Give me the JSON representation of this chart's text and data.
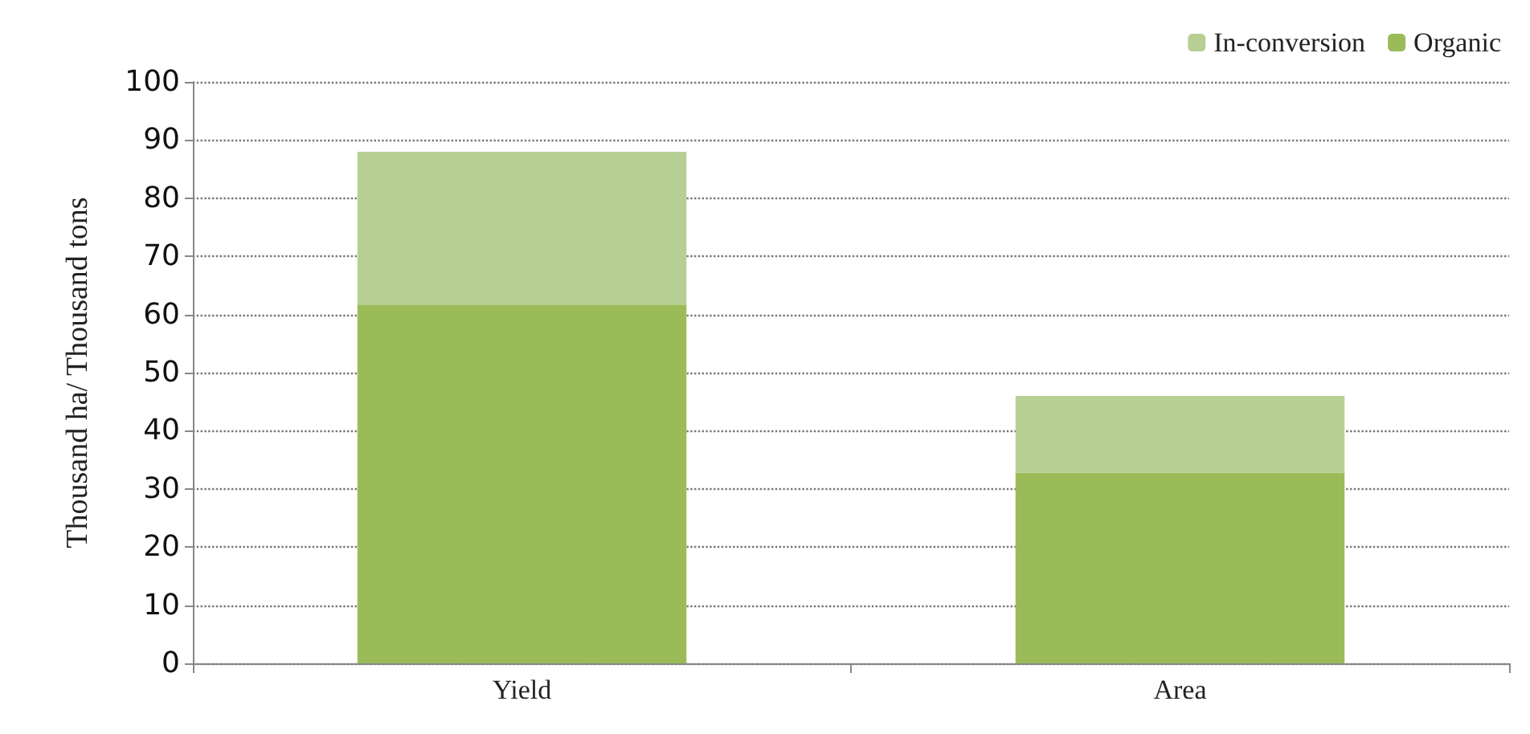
{
  "chart_data": {
    "type": "bar",
    "ylabel": "Thousand ha/ Thousand tons",
    "categories": [
      "Yield",
      "Area"
    ],
    "stacked": true,
    "series": [
      {
        "name": "Organic",
        "color": "#9bbb59",
        "values": [
          61.7,
          32.8
        ]
      },
      {
        "name": "In-conversion",
        "color": "#b8cf94",
        "values": [
          26.3,
          13.2
        ]
      }
    ],
    "ylim": [
      0,
      100
    ],
    "yticks": [
      0,
      10,
      20,
      30,
      40,
      50,
      60,
      70,
      80,
      90,
      100
    ],
    "grid": "y",
    "legend": "top right"
  }
}
